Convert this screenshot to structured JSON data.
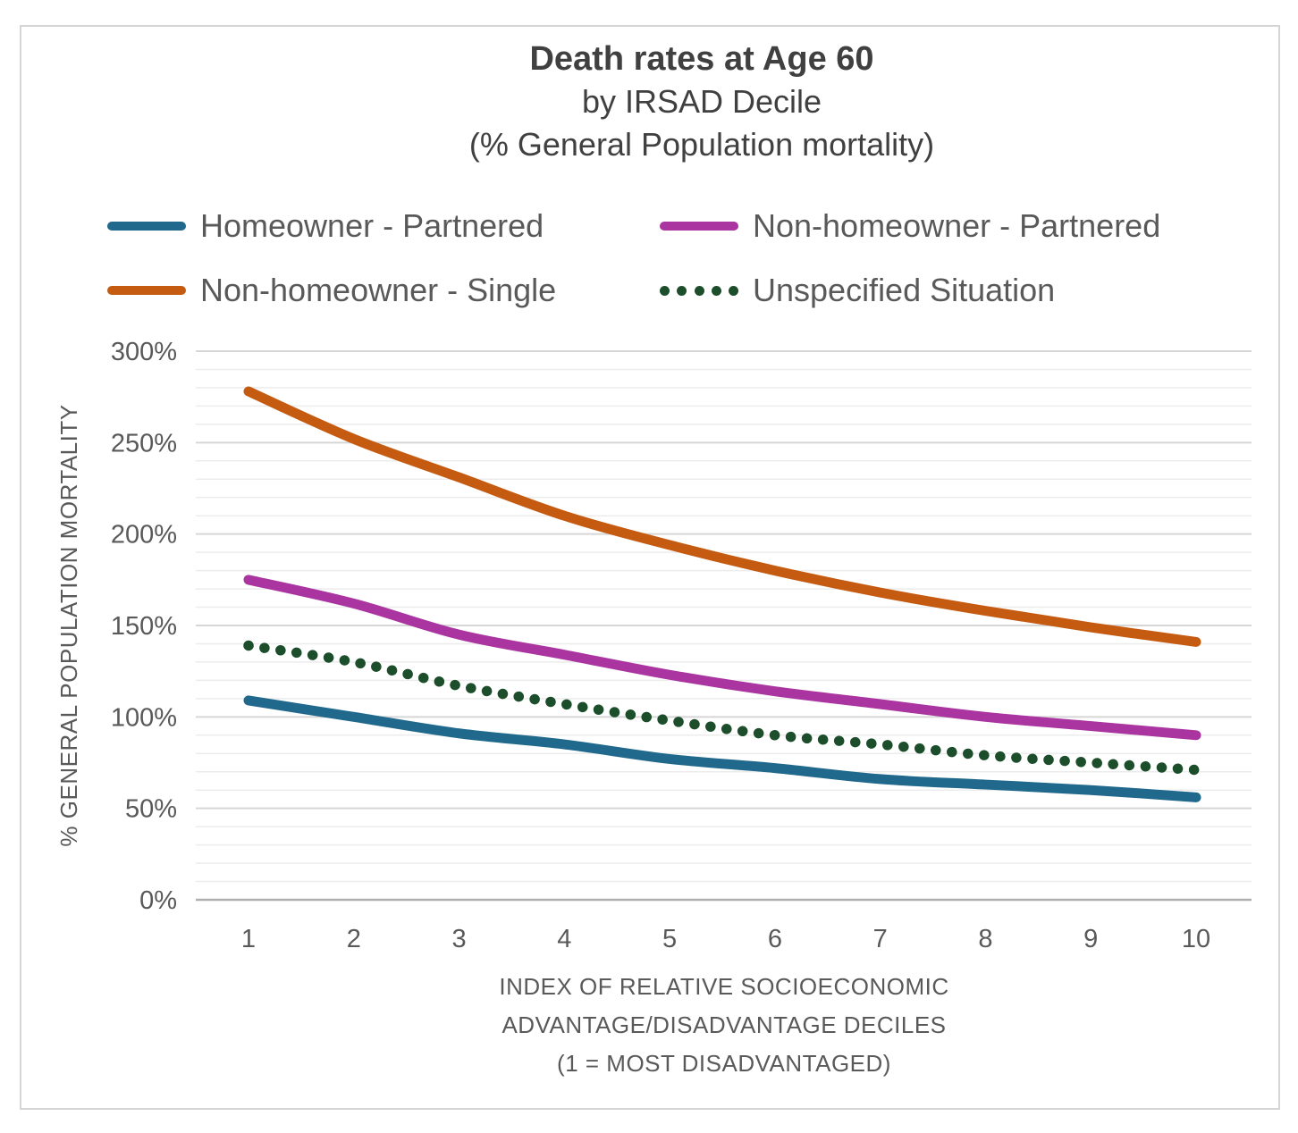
{
  "title": {
    "line1": "Death rates at Age 60",
    "line2": "by IRSAD Decile",
    "line3": "(% General Population mortality)"
  },
  "legend": [
    {
      "label": "Homeowner - Partnered",
      "color": "#20698C",
      "style": "solid"
    },
    {
      "label": "Non-homeowner - Partnered",
      "color": "#AA35A0",
      "style": "solid"
    },
    {
      "label": "Non-homeowner - Single",
      "color": "#C55A11",
      "style": "solid"
    },
    {
      "label": "Unspecified Situation",
      "color": "#1C4E2B",
      "style": "dotted"
    }
  ],
  "chart_data": {
    "type": "line",
    "title": "Death rates at Age 60 by IRSAD Decile (% General Population mortality)",
    "categories": [
      "1",
      "2",
      "3",
      "4",
      "5",
      "6",
      "7",
      "8",
      "9",
      "10"
    ],
    "series": [
      {
        "name": "Homeowner - Partnered",
        "color": "#20698C",
        "style": "solid",
        "values": [
          109,
          100,
          91,
          85,
          77,
          72,
          66,
          63,
          60,
          56
        ]
      },
      {
        "name": "Non-homeowner - Partnered",
        "color": "#AA35A0",
        "style": "solid",
        "values": [
          175,
          162,
          145,
          134,
          123,
          114,
          107,
          100,
          95,
          90
        ]
      },
      {
        "name": "Non-homeowner - Single",
        "color": "#C55A11",
        "style": "solid",
        "values": [
          278,
          252,
          231,
          210,
          194,
          180,
          168,
          158,
          149,
          141
        ]
      },
      {
        "name": "Unspecified Situation",
        "color": "#1C4E2B",
        "style": "dotted",
        "values": [
          139,
          130,
          117,
          107,
          98,
          90,
          85,
          79,
          75,
          71
        ]
      }
    ],
    "xlabel_lines": [
      "INDEX OF RELATIVE SOCIOECONOMIC",
      "ADVANTAGE/DISADVANTAGE DECILES",
      "(1 = MOST DISADVANTAGED)"
    ],
    "ylabel": "% GENERAL POPULATION MORTALITY",
    "ylim": [
      0,
      300
    ],
    "y_major_step": 50,
    "y_minor_step": 10,
    "y_tick_labels": [
      "0%",
      "50%",
      "100%",
      "150%",
      "200%",
      "250%",
      "300%"
    ],
    "grid": "horizontal-only",
    "legend_position": "top"
  },
  "colors": {
    "axis_text": "#595959",
    "title_text": "#404040",
    "minor_grid": "#ECECEC",
    "major_grid": "#D6D6D6",
    "zero_line": "#AFAFAF",
    "frame_border": "#D5D5D5"
  }
}
